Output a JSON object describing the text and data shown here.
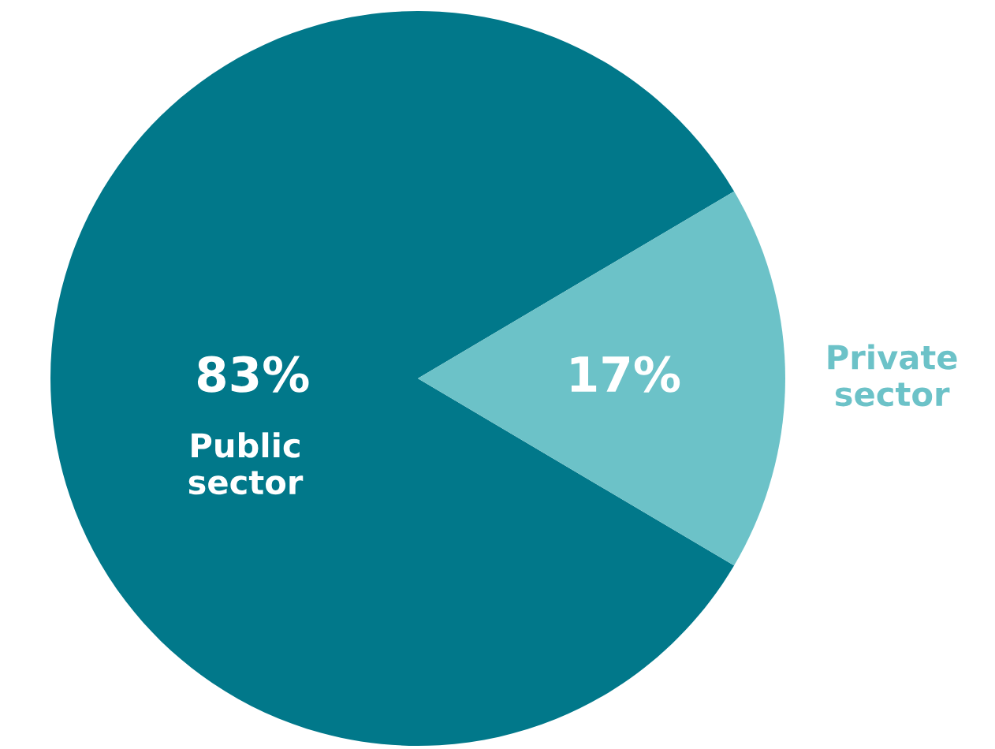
{
  "chart_data": {
    "type": "pie",
    "categories": [
      "Public sector",
      "Private sector"
    ],
    "values": [
      83,
      17
    ],
    "value_labels": [
      "83%",
      "17%"
    ],
    "colors": [
      "#01788a",
      "#6cc2c8"
    ]
  }
}
